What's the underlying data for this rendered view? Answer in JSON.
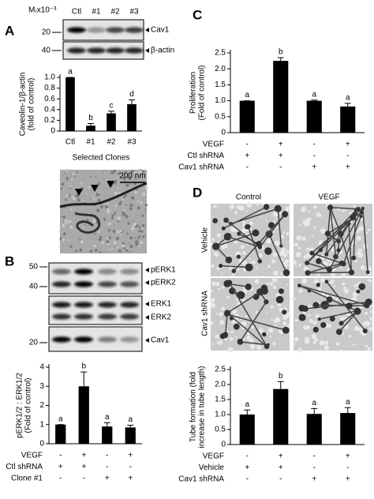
{
  "panels": {
    "a": {
      "label": "A",
      "mw_label": "Mᵣx10⁻³",
      "lanes": [
        "Ctl",
        "#1",
        "#2",
        "#3"
      ],
      "blots": [
        {
          "name": "Cav1",
          "marker": "20"
        },
        {
          "name": "β-actin",
          "marker": "40"
        }
      ],
      "micrograph": {
        "scale": "200 nm"
      }
    },
    "b": {
      "label": "B",
      "blots": [
        {
          "names": [
            "pERK1",
            "pERK2"
          ],
          "markers": [
            "50",
            "40"
          ]
        },
        {
          "names": [
            "ERK1",
            "ERK2"
          ]
        },
        {
          "names": [
            "Cav1"
          ],
          "markers": [
            "20"
          ]
        }
      ]
    },
    "c": {
      "label": "C"
    },
    "d": {
      "label": "D",
      "columns": [
        "Control",
        "VEGF"
      ],
      "rows": [
        "Vehicle",
        "Cav1 shRNA"
      ]
    }
  },
  "chart_data": [
    {
      "type": "bar",
      "ylabel": [
        "Caveolin-1/β-actin",
        "(fold of control)"
      ],
      "categories": [
        "Ctl",
        "#1",
        "#2",
        "#3"
      ],
      "xlabel": "Selected Clones",
      "values": [
        1,
        0.1,
        0.33,
        0.5
      ],
      "errors": [
        0,
        0.04,
        0.04,
        0.08
      ],
      "letters": [
        "a",
        "b",
        "c",
        "d"
      ],
      "color": "#000000",
      "ylim": [
        0,
        1
      ],
      "yticks": [
        0,
        0.2,
        0.4,
        0.6,
        0.8,
        {
          "value": 1,
          "label": "1.0"
        }
      ]
    },
    {
      "type": "bar",
      "ylabel": [
        "pERK1/2 : ERK1/2",
        "(Fold of control)"
      ],
      "values": [
        1,
        3,
        0.9,
        0.85
      ],
      "errors": [
        0,
        0.75,
        0.2,
        0.12
      ],
      "letters": [
        "a",
        "b",
        "a",
        "a"
      ],
      "color": "#000000",
      "ylim": [
        0,
        4
      ],
      "yticks": [
        0,
        1,
        2,
        3,
        4
      ],
      "conditions": [
        {
          "name": "VEGF",
          "signs": [
            "-",
            "+",
            "-",
            "+"
          ]
        },
        {
          "name": "Ctl shRNA",
          "signs": [
            "+",
            "+",
            "-",
            "-"
          ]
        },
        {
          "name": "Clone #1",
          "signs": [
            "-",
            "-",
            "+",
            "+"
          ]
        }
      ]
    },
    {
      "type": "bar",
      "ylabel": [
        "Proliferation",
        "(Fold of control)"
      ],
      "values": [
        1,
        2.25,
        1,
        0.82
      ],
      "errors": [
        0,
        0.1,
        0.02,
        0.1
      ],
      "letters": [
        "a",
        "b",
        "a",
        "a"
      ],
      "color": "#000000",
      "ylim": [
        0,
        2.5
      ],
      "yticks": [
        0,
        0.5,
        {
          "value": 1,
          "label": "1.0"
        },
        1.5,
        {
          "value": 2,
          "label": "2.0"
        },
        2.5
      ],
      "conditions": [
        {
          "name": "VEGF",
          "signs": [
            "-",
            "+",
            "-",
            "+"
          ]
        },
        {
          "name": "Ctl shRNA",
          "signs": [
            "+",
            "+",
            "-",
            "-"
          ]
        },
        {
          "name": "Cav1 shRNA",
          "signs": [
            "-",
            "-",
            "+",
            "+"
          ]
        }
      ]
    },
    {
      "type": "bar",
      "ylabel": [
        "Tube formation (fold",
        "increase in tube length)"
      ],
      "values": [
        1,
        1.85,
        1.02,
        1.05
      ],
      "errors": [
        0.15,
        0.25,
        0.18,
        0.18
      ],
      "letters": [
        "a",
        "b",
        "a",
        "a"
      ],
      "color": "#000000",
      "ylim": [
        0,
        2.5
      ],
      "yticks": [
        0,
        0.5,
        {
          "value": 1,
          "label": "1.0"
        },
        1.5,
        {
          "value": 2,
          "label": "2.0"
        },
        2.5
      ],
      "conditions": [
        {
          "name": "VEGF",
          "signs": [
            "-",
            "+",
            "-",
            "+"
          ]
        },
        {
          "name": "Vehicle",
          "signs": [
            "+",
            "+",
            "-",
            "-"
          ]
        },
        {
          "name": "Cav1 shRNA",
          "signs": [
            "-",
            "-",
            "+",
            "+"
          ]
        }
      ]
    }
  ]
}
